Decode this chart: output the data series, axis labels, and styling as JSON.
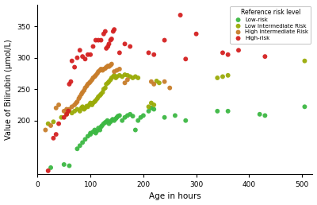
{
  "xlabel": "Age in hours",
  "ylabel": "Value of Bilirubin (μmol/L)",
  "xlim": [
    0,
    520
  ],
  "ylim": [
    115,
    385
  ],
  "xticks": [
    0,
    100,
    200,
    300,
    400,
    500
  ],
  "yticks": [
    200,
    250,
    300,
    350
  ],
  "legend_title": "Reference risk level",
  "categories": [
    "Low-risk",
    "Low Intermediate Risk",
    "High Intermediate Risk",
    "High-risk"
  ],
  "colors": [
    "#3cb843",
    "#9aab08",
    "#c87d2a",
    "#d42020"
  ],
  "marker_size": 18,
  "low_risk": {
    "age": [
      25,
      50,
      60,
      75,
      80,
      85,
      90,
      95,
      100,
      100,
      105,
      108,
      110,
      112,
      115,
      118,
      120,
      122,
      125,
      128,
      130,
      132,
      135,
      138,
      140,
      142,
      145,
      148,
      150,
      152,
      155,
      160,
      165,
      170,
      175,
      180,
      185,
      190,
      195,
      200,
      210,
      215,
      220,
      240,
      260,
      280,
      340,
      360,
      420,
      430,
      505
    ],
    "bili": [
      125,
      130,
      128,
      155,
      160,
      165,
      170,
      175,
      180,
      178,
      182,
      185,
      180,
      183,
      188,
      185,
      190,
      192,
      195,
      197,
      198,
      200,
      195,
      198,
      200,
      202,
      200,
      203,
      205,
      207,
      208,
      200,
      205,
      208,
      210,
      207,
      185,
      200,
      205,
      208,
      215,
      220,
      218,
      205,
      208,
      200,
      215,
      215,
      210,
      208,
      222
    ]
  },
  "low_int_risk": {
    "age": [
      20,
      30,
      45,
      55,
      60,
      65,
      70,
      75,
      80,
      83,
      85,
      88,
      90,
      93,
      95,
      98,
      100,
      103,
      105,
      108,
      110,
      113,
      115,
      118,
      120,
      123,
      125,
      128,
      130,
      133,
      135,
      138,
      140,
      143,
      145,
      148,
      150,
      155,
      160,
      165,
      170,
      175,
      180,
      185,
      190,
      210,
      215,
      220,
      225,
      230,
      340,
      350,
      360,
      505
    ],
    "bili": [
      195,
      198,
      205,
      210,
      215,
      212,
      215,
      218,
      215,
      220,
      222,
      218,
      220,
      223,
      222,
      225,
      228,
      225,
      228,
      230,
      232,
      235,
      238,
      240,
      242,
      245,
      250,
      252,
      258,
      260,
      262,
      265,
      268,
      270,
      272,
      268,
      270,
      272,
      270,
      273,
      272,
      270,
      268,
      270,
      268,
      222,
      228,
      225,
      263,
      260,
      268,
      270,
      272,
      295
    ]
  },
  "high_int_risk": {
    "age": [
      15,
      25,
      35,
      40,
      50,
      55,
      60,
      65,
      70,
      73,
      75,
      78,
      80,
      83,
      85,
      88,
      90,
      93,
      95,
      98,
      100,
      103,
      105,
      108,
      110,
      113,
      115,
      118,
      120,
      123,
      125,
      128,
      130,
      133,
      135,
      138,
      140,
      145,
      150,
      155,
      165,
      170,
      215,
      220,
      240,
      250
    ],
    "bili": [
      185,
      192,
      220,
      225,
      215,
      218,
      218,
      222,
      225,
      228,
      230,
      235,
      238,
      242,
      245,
      248,
      252,
      255,
      258,
      260,
      262,
      265,
      268,
      270,
      272,
      275,
      278,
      280,
      282,
      280,
      282,
      283,
      285,
      287,
      286,
      288,
      290,
      278,
      280,
      282,
      260,
      265,
      262,
      258,
      262,
      252
    ]
  },
  "high_risk": {
    "age": [
      20,
      30,
      35,
      40,
      50,
      55,
      58,
      60,
      63,
      65,
      70,
      75,
      80,
      85,
      90,
      95,
      100,
      105,
      110,
      115,
      120,
      125,
      128,
      130,
      133,
      135,
      138,
      140,
      143,
      145,
      155,
      165,
      175,
      210,
      220,
      240,
      270,
      280,
      300,
      350,
      360,
      380,
      430
    ],
    "bili": [
      120,
      172,
      178,
      195,
      205,
      210,
      215,
      258,
      262,
      295,
      285,
      300,
      312,
      302,
      298,
      305,
      305,
      318,
      328,
      328,
      328,
      338,
      342,
      315,
      318,
      322,
      328,
      330,
      342,
      345,
      308,
      322,
      318,
      308,
      305,
      328,
      368,
      298,
      338,
      308,
      305,
      312,
      302
    ]
  }
}
